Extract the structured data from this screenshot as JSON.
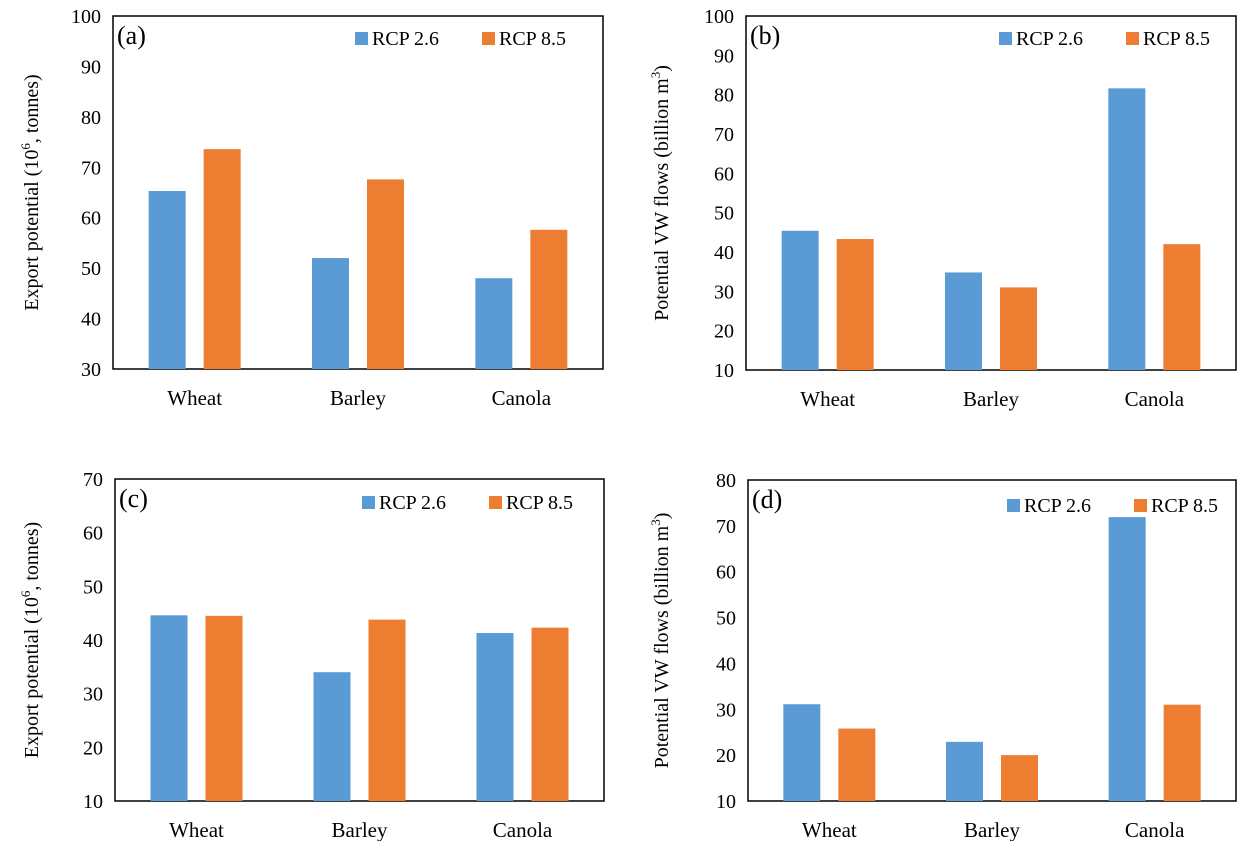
{
  "colors": {
    "rcp26": "#5B9BD5",
    "rcp85": "#ED7D31",
    "axis": "#000000"
  },
  "chart_data": [
    {
      "type": "bar",
      "panel_label": "(a)",
      "ylabel": "Export potential (10",
      "ylabel_sup": "6",
      "ylabel_tail": ", tonnes)",
      "categories": [
        "Wheat",
        "Barley",
        "Canola"
      ],
      "ylim": [
        30,
        100
      ],
      "yticks": [
        "30",
        "40",
        "50",
        "60",
        "70",
        "80",
        "90",
        "100"
      ],
      "series": [
        {
          "name": "RCP 2.6",
          "values": [
            65.3,
            52.0,
            48.0
          ]
        },
        {
          "name": "RCP 8.5",
          "values": [
            73.6,
            67.6,
            57.6
          ]
        }
      ],
      "grid": false,
      "legend": "top-right"
    },
    {
      "type": "bar",
      "panel_label": "(b)",
      "ylabel": "Potential VW flows (billion m",
      "ylabel_sup": "3",
      "ylabel_tail": ")",
      "categories": [
        "Wheat",
        "Barley",
        "Canola"
      ],
      "ylim": [
        10,
        100
      ],
      "yticks": [
        "10",
        "20",
        "30",
        "40",
        "50",
        "60",
        "70",
        "80",
        "90",
        "100"
      ],
      "series": [
        {
          "name": "RCP 2.6",
          "values": [
            45.4,
            34.8,
            81.6
          ]
        },
        {
          "name": "RCP 8.5",
          "values": [
            43.3,
            31.0,
            42.0
          ]
        }
      ],
      "grid": false,
      "legend": "top-right"
    },
    {
      "type": "bar",
      "panel_label": "(c)",
      "ylabel": "Export potential (10",
      "ylabel_sup": "6",
      "ylabel_tail": ", tonnes)",
      "categories": [
        "Wheat",
        "Barley",
        "Canola"
      ],
      "ylim": [
        10,
        70
      ],
      "yticks": [
        "10",
        "20",
        "30",
        "40",
        "50",
        "60",
        "70"
      ],
      "series": [
        {
          "name": "RCP 2.6",
          "values": [
            44.6,
            34.0,
            41.3
          ]
        },
        {
          "name": "RCP 8.5",
          "values": [
            44.5,
            43.8,
            42.3
          ]
        }
      ],
      "grid": false,
      "legend": "top-right"
    },
    {
      "type": "bar",
      "panel_label": "(d)",
      "ylabel": "Potential VW flows (billion m",
      "ylabel_sup": "3",
      "ylabel_tail": ")",
      "categories": [
        "Wheat",
        "Barley",
        "Canola"
      ],
      "ylim": [
        10,
        80
      ],
      "yticks": [
        "10",
        "20",
        "30",
        "40",
        "50",
        "60",
        "70",
        "80"
      ],
      "series": [
        {
          "name": "RCP 2.6",
          "values": [
            31.1,
            22.9,
            71.9
          ]
        },
        {
          "name": "RCP 8.5",
          "values": [
            25.8,
            20.0,
            31.0
          ]
        }
      ],
      "grid": false,
      "legend": "top-right"
    }
  ]
}
